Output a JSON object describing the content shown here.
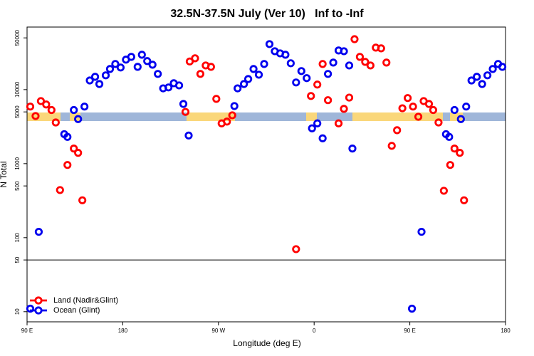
{
  "chart_data": {
    "type": "scatter",
    "title": "32.5N-37.5N July (Ver 10)   Inf to -Inf",
    "x_label": "Longitude (deg E)",
    "y_label": "N Total",
    "xlim": [
      90,
      540
    ],
    "xticks": [
      {
        "value": 90,
        "label": "90 E"
      },
      {
        "value": 180,
        "label": "180"
      },
      {
        "value": 270,
        "label": "90 W"
      },
      {
        "value": 360,
        "label": "0"
      },
      {
        "value": 450,
        "label": "90 E"
      },
      {
        "value": 540,
        "label": "180"
      }
    ],
    "ylim": [
      7.3,
      70000
    ],
    "yscale": "log",
    "yticks": [
      10,
      50,
      100,
      500,
      1000,
      5000,
      10000,
      50000
    ],
    "hline": 50,
    "legend": "lower left",
    "series": [
      {
        "name": "Land (Nadir&Glint)",
        "color": "#ff0000",
        "x": [
          93,
          98,
          103,
          108,
          113,
          117,
          121,
          128,
          134,
          138,
          142,
          239,
          243,
          248,
          253,
          258,
          263,
          268,
          273,
          278,
          283,
          343,
          357,
          363,
          368,
          373,
          383,
          388,
          393,
          398,
          403,
          408,
          413,
          418,
          423,
          428,
          433,
          438,
          443,
          448,
          453,
          458,
          463,
          468,
          472,
          477,
          482,
          488,
          492,
          497,
          501
        ],
        "values": [
          5900,
          4400,
          7000,
          6300,
          5300,
          3600,
          440,
          960,
          1600,
          1400,
          320,
          5000,
          24000,
          26500,
          16300,
          21200,
          20300,
          7500,
          3500,
          3700,
          4500,
          70,
          8200,
          11700,
          22200,
          7200,
          3500,
          5500,
          7800,
          48000,
          27700,
          23700,
          21200,
          36900,
          36100,
          23200,
          1740,
          2830,
          5600,
          7700,
          5900,
          4300,
          7000,
          6400,
          5300,
          3600,
          430,
          960,
          1600,
          1400,
          320
        ]
      },
      {
        "name": "Ocean (Glint)",
        "color": "#0000ee",
        "x": [
          93,
          101,
          125,
          128,
          134,
          138,
          144,
          149,
          154,
          158,
          164,
          168,
          173,
          178,
          183,
          188,
          194,
          198,
          203,
          208,
          213,
          218,
          223,
          228,
          233,
          237,
          242,
          285,
          288,
          294,
          298,
          303,
          308,
          313,
          318,
          323,
          328,
          333,
          338,
          343,
          348,
          353,
          358,
          363,
          368,
          373,
          378,
          383,
          388,
          393,
          396,
          452,
          461,
          484,
          487,
          492,
          498,
          503,
          508,
          513,
          518,
          523,
          528,
          533,
          537
        ],
        "values": [
          11,
          120,
          2500,
          2300,
          5300,
          4000,
          5900,
          13300,
          14900,
          11900,
          15600,
          19000,
          22200,
          19900,
          25400,
          27700,
          20300,
          29600,
          24300,
          21700,
          16300,
          10400,
          10700,
          12200,
          11400,
          6400,
          2400,
          6000,
          10400,
          11900,
          13900,
          19000,
          15900,
          22200,
          41200,
          33000,
          30900,
          29600,
          22700,
          12500,
          17800,
          14300,
          3000,
          3500,
          2200,
          16300,
          23200,
          33800,
          33000,
          21200,
          1600,
          11,
          120,
          2500,
          2300,
          5300,
          4000,
          5900,
          13300,
          14900,
          11900,
          15600,
          19000,
          22200,
          20300
        ]
      }
    ]
  }
}
